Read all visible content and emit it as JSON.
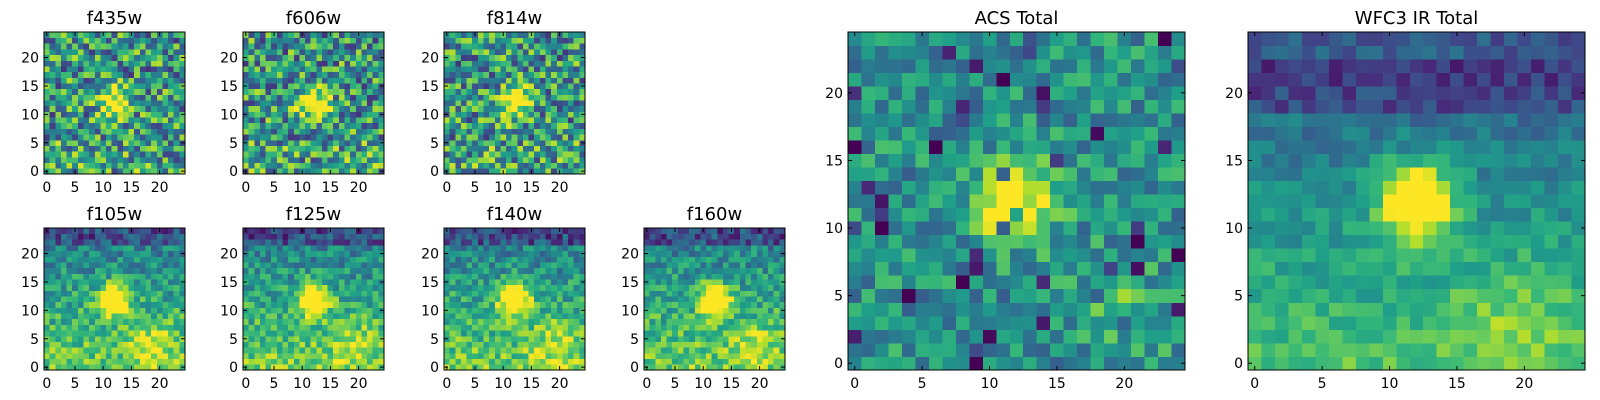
{
  "chart_data": [
    {
      "id": "f435w",
      "type": "heatmap",
      "title": "f435w",
      "colormap": "viridis",
      "grid_size": [
        25,
        25
      ],
      "xlim": [
        -0.5,
        24.5
      ],
      "ylim": [
        -0.5,
        24.5
      ],
      "xticks": [
        0,
        5,
        10,
        15,
        20
      ],
      "yticks": [
        0,
        5,
        10,
        15,
        20
      ],
      "xtick_labels": [
        "0",
        "5",
        "10",
        "15",
        "20"
      ],
      "ytick_labels": [
        "0",
        "5",
        "10",
        "15",
        "20"
      ],
      "xlabel": "",
      "ylabel": "",
      "source_center": [
        12,
        12
      ],
      "texture": "noisy"
    },
    {
      "id": "f606w",
      "type": "heatmap",
      "title": "f606w",
      "colormap": "viridis",
      "grid_size": [
        25,
        25
      ],
      "xlim": [
        -0.5,
        24.5
      ],
      "ylim": [
        -0.5,
        24.5
      ],
      "xticks": [
        0,
        5,
        10,
        15,
        20
      ],
      "yticks": [
        0,
        5,
        10,
        15,
        20
      ],
      "xtick_labels": [
        "0",
        "5",
        "10",
        "15",
        "20"
      ],
      "ytick_labels": [
        "0",
        "5",
        "10",
        "15",
        "20"
      ],
      "xlabel": "",
      "ylabel": "",
      "source_center": [
        12,
        12
      ],
      "texture": "noisy"
    },
    {
      "id": "f814w",
      "type": "heatmap",
      "title": "f814w",
      "colormap": "viridis",
      "grid_size": [
        25,
        25
      ],
      "xlim": [
        -0.5,
        24.5
      ],
      "ylim": [
        -0.5,
        24.5
      ],
      "xticks": [
        0,
        5,
        10,
        15,
        20
      ],
      "yticks": [
        0,
        5,
        10,
        15,
        20
      ],
      "xtick_labels": [
        "0",
        "5",
        "10",
        "15",
        "20"
      ],
      "ytick_labels": [
        "0",
        "5",
        "10",
        "15",
        "20"
      ],
      "xlabel": "",
      "ylabel": "",
      "source_center": [
        12,
        12
      ],
      "texture": "noisy"
    },
    {
      "id": "f105w",
      "type": "heatmap",
      "title": "f105w",
      "colormap": "viridis",
      "grid_size": [
        25,
        25
      ],
      "xlim": [
        -0.5,
        24.5
      ],
      "ylim": [
        -0.5,
        24.5
      ],
      "xticks": [
        0,
        5,
        10,
        15,
        20
      ],
      "yticks": [
        0,
        5,
        10,
        15,
        20
      ],
      "xtick_labels": [
        "0",
        "5",
        "10",
        "15",
        "20"
      ],
      "ytick_labels": [
        "0",
        "5",
        "10",
        "15",
        "20"
      ],
      "xlabel": "",
      "ylabel": "",
      "source_center": [
        12,
        12
      ],
      "texture": "ir"
    },
    {
      "id": "f125w",
      "type": "heatmap",
      "title": "f125w",
      "colormap": "viridis",
      "grid_size": [
        25,
        25
      ],
      "xlim": [
        -0.5,
        24.5
      ],
      "ylim": [
        -0.5,
        24.5
      ],
      "xticks": [
        0,
        5,
        10,
        15,
        20
      ],
      "yticks": [
        0,
        5,
        10,
        15,
        20
      ],
      "xtick_labels": [
        "0",
        "5",
        "10",
        "15",
        "20"
      ],
      "ytick_labels": [
        "0",
        "5",
        "10",
        "15",
        "20"
      ],
      "xlabel": "",
      "ylabel": "",
      "source_center": [
        12,
        12
      ],
      "texture": "ir"
    },
    {
      "id": "f140w",
      "type": "heatmap",
      "title": "f140w",
      "colormap": "viridis",
      "grid_size": [
        25,
        25
      ],
      "xlim": [
        -0.5,
        24.5
      ],
      "ylim": [
        -0.5,
        24.5
      ],
      "xticks": [
        0,
        5,
        10,
        15,
        20
      ],
      "yticks": [
        0,
        5,
        10,
        15,
        20
      ],
      "xtick_labels": [
        "0",
        "5",
        "10",
        "15",
        "20"
      ],
      "ytick_labels": [
        "0",
        "5",
        "10",
        "15",
        "20"
      ],
      "xlabel": "",
      "ylabel": "",
      "source_center": [
        12,
        12
      ],
      "texture": "ir"
    },
    {
      "id": "f160w",
      "type": "heatmap",
      "title": "f160w",
      "colormap": "viridis",
      "grid_size": [
        25,
        25
      ],
      "xlim": [
        -0.5,
        24.5
      ],
      "ylim": [
        -0.5,
        24.5
      ],
      "xticks": [
        0,
        5,
        10,
        15,
        20
      ],
      "yticks": [
        0,
        5,
        10,
        15,
        20
      ],
      "xtick_labels": [
        "0",
        "5",
        "10",
        "15",
        "20"
      ],
      "ytick_labels": [
        "0",
        "5",
        "10",
        "15",
        "20"
      ],
      "xlabel": "",
      "ylabel": "",
      "source_center": [
        12,
        12
      ],
      "texture": "ir"
    },
    {
      "id": "acs-total",
      "type": "heatmap",
      "title": "ACS Total",
      "colormap": "viridis",
      "grid_size": [
        25,
        25
      ],
      "xlim": [
        -0.5,
        24.5
      ],
      "ylim": [
        -0.5,
        24.5
      ],
      "xticks": [
        0,
        5,
        10,
        15,
        20
      ],
      "yticks": [
        0,
        5,
        10,
        15,
        20
      ],
      "xtick_labels": [
        "0",
        "5",
        "10",
        "15",
        "20"
      ],
      "ytick_labels": [
        "0",
        "5",
        "10",
        "15",
        "20"
      ],
      "xlabel": "",
      "ylabel": "",
      "source_center": [
        12,
        12
      ],
      "texture": "total-noisy"
    },
    {
      "id": "wfc3-ir-total",
      "type": "heatmap",
      "title": "WFC3 IR Total",
      "colormap": "viridis",
      "grid_size": [
        25,
        25
      ],
      "xlim": [
        -0.5,
        24.5
      ],
      "ylim": [
        -0.5,
        24.5
      ],
      "xticks": [
        0,
        5,
        10,
        15,
        20
      ],
      "yticks": [
        0,
        5,
        10,
        15,
        20
      ],
      "xtick_labels": [
        "0",
        "5",
        "10",
        "15",
        "20"
      ],
      "ytick_labels": [
        "0",
        "5",
        "10",
        "15",
        "20"
      ],
      "xlabel": "",
      "ylabel": "",
      "source_center": [
        12,
        12
      ],
      "texture": "total-ir"
    }
  ]
}
